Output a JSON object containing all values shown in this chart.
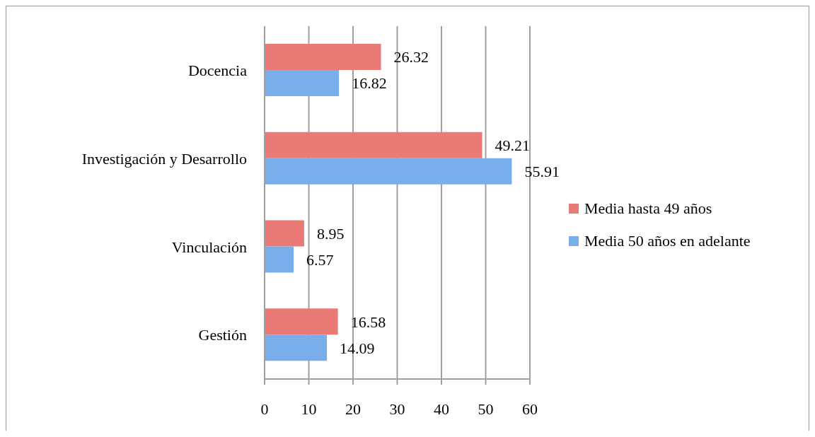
{
  "chart_data": {
    "type": "bar",
    "orientation": "horizontal",
    "categories": [
      "Docencia",
      "Investigación y Desarrollo",
      "Vinculación",
      "Gestión"
    ],
    "series": [
      {
        "name": "Media hasta 49 años",
        "color": "#e97a75",
        "values": [
          26.32,
          49.21,
          8.95,
          16.58
        ]
      },
      {
        "name": "Media 50 años en adelante",
        "color": "#7aaeea",
        "values": [
          16.82,
          55.91,
          6.57,
          14.09
        ]
      }
    ],
    "xlim": [
      0,
      60
    ],
    "xticks": [
      0,
      10,
      20,
      30,
      40,
      50,
      60
    ],
    "grid": "x",
    "legend": "right",
    "data_labels": true
  }
}
